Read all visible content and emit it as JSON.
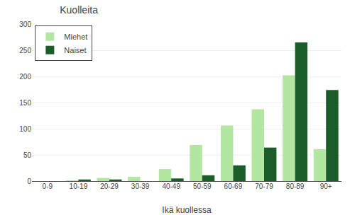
{
  "chart_data": {
    "type": "bar",
    "title": "Kuolleita",
    "xlabel": "Ikä kuollessa",
    "categories": [
      "0-9",
      "10-19",
      "20-29",
      "30-39",
      "40-49",
      "50-59",
      "60-69",
      "70-79",
      "80-89",
      "90+"
    ],
    "series": [
      {
        "name": "Miehet",
        "color": "#b3e6a0",
        "values": [
          0,
          1,
          6,
          8,
          23,
          69,
          106,
          137,
          202,
          61
        ]
      },
      {
        "name": "Naiset",
        "color": "#1a5c2a",
        "values": [
          0,
          3,
          3,
          0,
          5,
          11,
          30,
          64,
          265,
          174
        ]
      }
    ],
    "ylim": [
      0,
      300
    ],
    "yticks": [
      0,
      50,
      100,
      150,
      200,
      250,
      300
    ],
    "grid": true,
    "legend": "upper left"
  }
}
